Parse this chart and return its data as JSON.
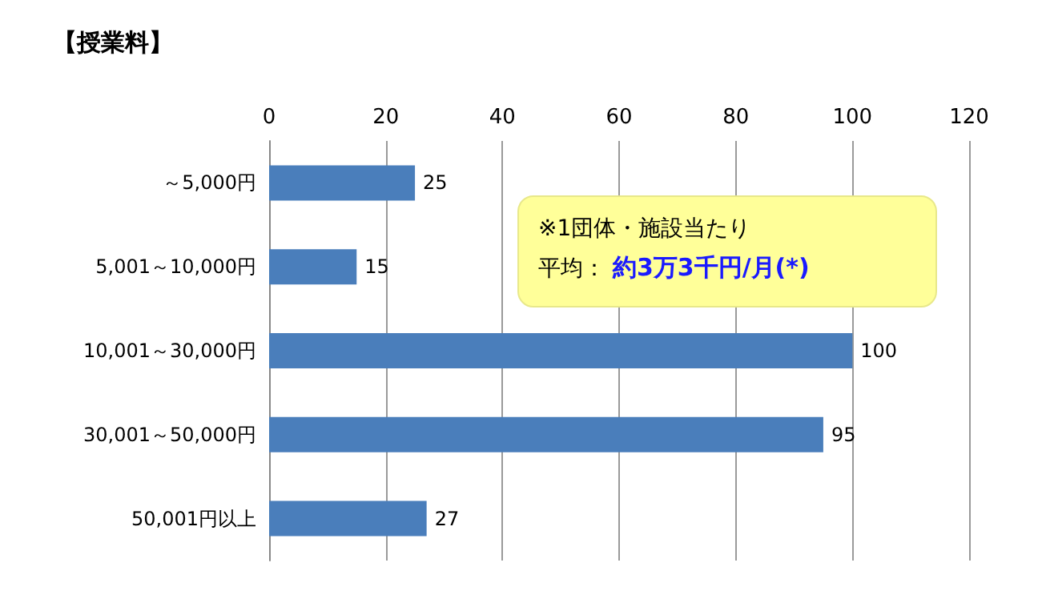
{
  "chart_data": {
    "type": "bar",
    "orientation": "horizontal",
    "title": "【授業料】",
    "categories": [
      "～5,000円",
      "5,001～10,000円",
      "10,001～30,000円",
      "30,001～50,000円",
      "50,001円以上"
    ],
    "values": [
      25,
      15,
      100,
      95,
      27
    ],
    "color": "#4a7ebb",
    "xlim": [
      0,
      120
    ],
    "xticks": [
      0,
      20,
      40,
      60,
      80,
      100,
      120
    ],
    "grid": "x",
    "data_labels": true,
    "annotations": [
      "※1団体・施設当たり",
      "平均：",
      "約3万3千円/月(*)"
    ]
  }
}
